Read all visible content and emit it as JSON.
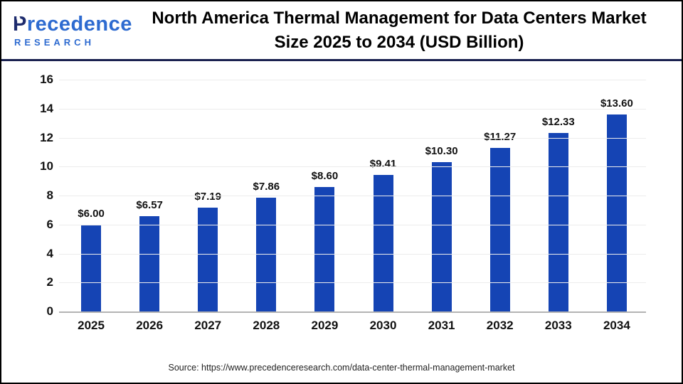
{
  "header": {
    "logo": {
      "brand_p": "P",
      "brand_rest": "recedence",
      "sub": "RESEARCH"
    },
    "title_line1": "North America Thermal Management for Data Centers Market",
    "title_line2": "Size 2025 to 2034 (USD Billion)"
  },
  "chart_data": {
    "type": "bar",
    "title": "North America Thermal Management for Data Centers Market Size 2025 to 2034 (USD Billion)",
    "categories": [
      "2025",
      "2026",
      "2027",
      "2028",
      "2029",
      "2030",
      "2031",
      "2032",
      "2033",
      "2034"
    ],
    "values": [
      6.0,
      6.57,
      7.19,
      7.86,
      8.6,
      9.41,
      10.3,
      11.27,
      12.33,
      13.6
    ],
    "value_labels": [
      "$6.00",
      "$6.57",
      "$7.19",
      "$7.86",
      "$8.60",
      "$9.41",
      "$10.30",
      "$11.27",
      "$12.33",
      "$13.60"
    ],
    "xlabel": "",
    "ylabel": "",
    "ylim": [
      0,
      16
    ],
    "yticks": [
      0,
      2,
      4,
      6,
      8,
      10,
      12,
      14,
      16
    ],
    "grid": true,
    "legend": false,
    "bar_color": "#1544b4"
  },
  "colors": {
    "bar": "#1544b4",
    "brand_navy": "#1d2b6d",
    "brand_blue": "#2e6bd0",
    "divider": "#1a2150"
  },
  "footer": {
    "source": "Source: https://www.precedenceresearch.com/data-center-thermal-management-market"
  }
}
